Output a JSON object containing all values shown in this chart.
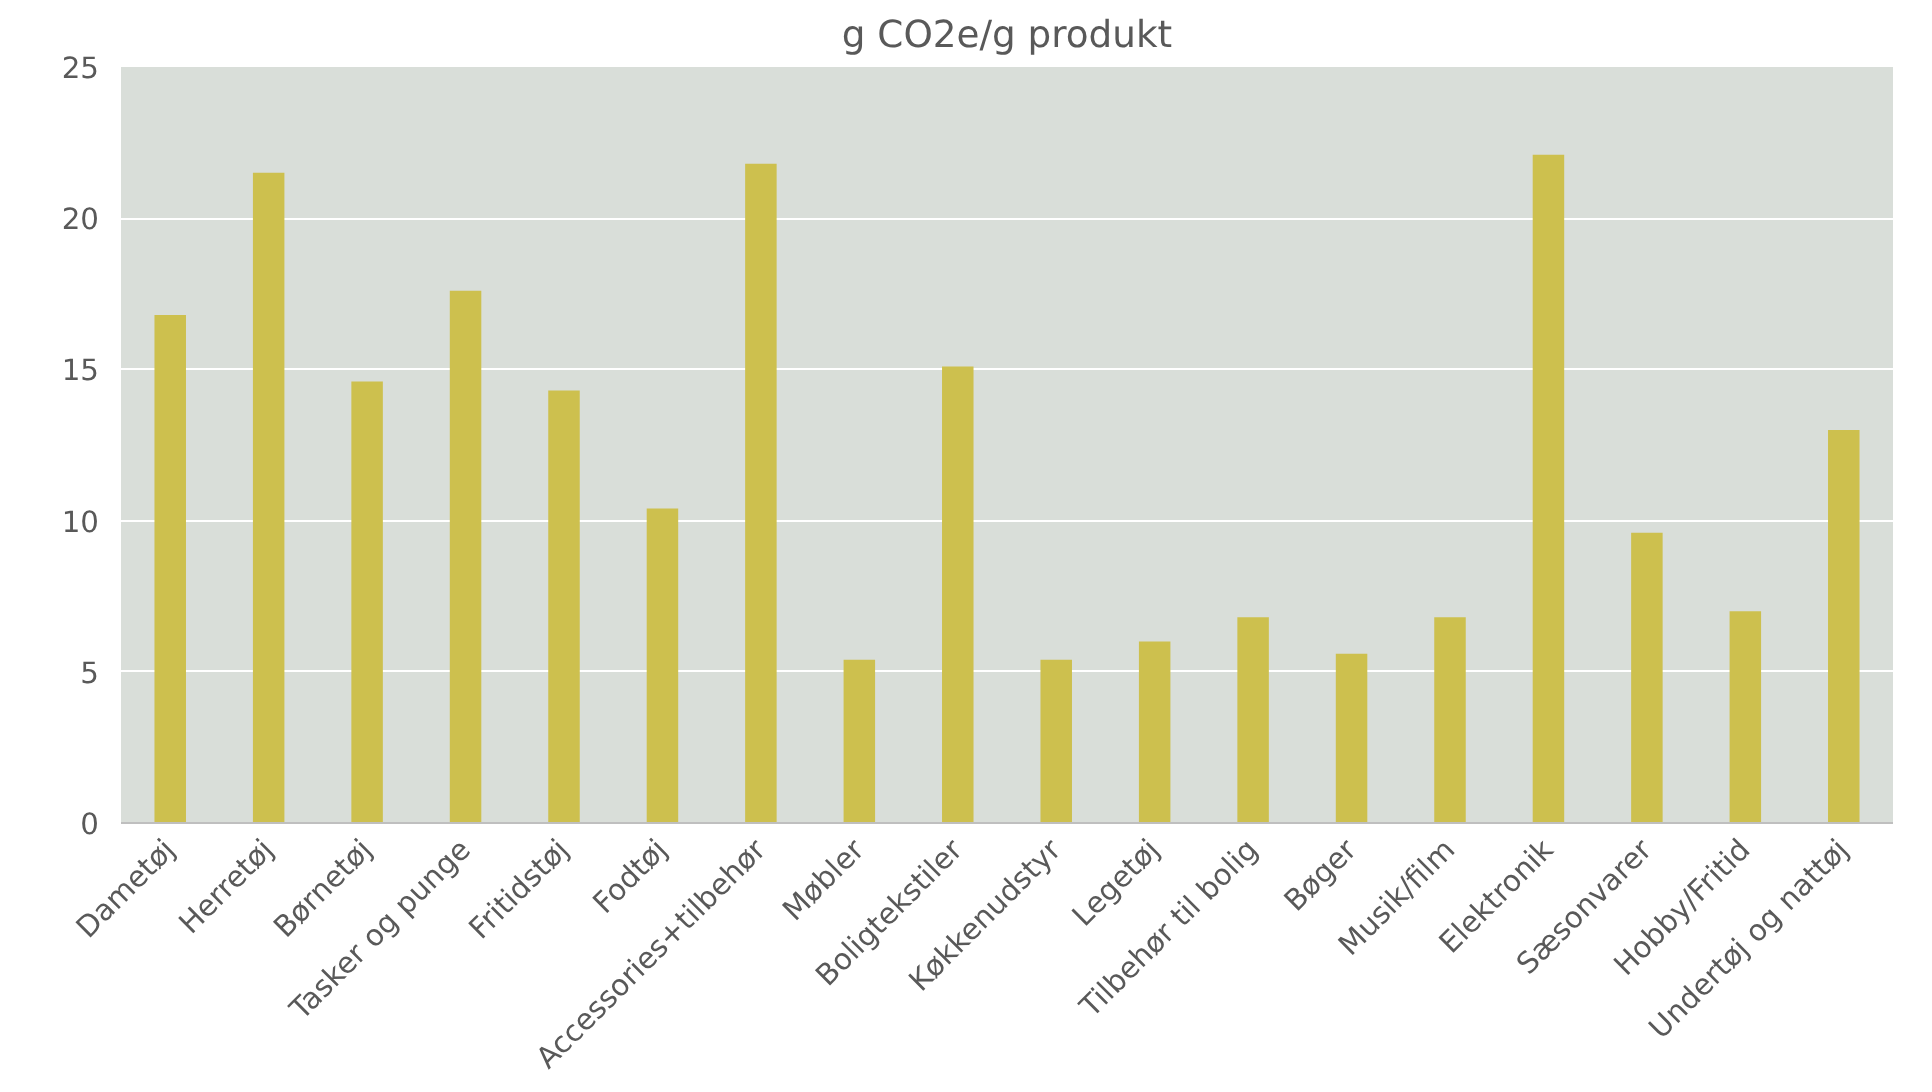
{
  "chart_data": {
    "type": "bar",
    "title": "g CO2e/g produkt",
    "categories": [
      "Dametøj",
      "Herretøj",
      "Børnetøj",
      "Tasker og punge",
      "Fritidstøj",
      "Fodtøj",
      "Accessories+tilbehør",
      "Møbler",
      "Boligtekstiler",
      "Køkkenudstyr",
      "Legetøj",
      "Tilbehør til bolig",
      "Bøger",
      "Musik/film",
      "Elektronik",
      "Sæsonvarer",
      "Hobby/Fritid",
      "Undertøj og nattøj"
    ],
    "values": [
      16.8,
      21.5,
      14.6,
      17.6,
      14.3,
      10.4,
      21.8,
      5.4,
      15.1,
      5.4,
      6.0,
      6.8,
      5.6,
      6.8,
      22.1,
      9.6,
      7.0,
      13.0
    ],
    "color": "#cdc04e",
    "ylim": [
      0,
      25
    ],
    "yticks": [
      0,
      5,
      10,
      15,
      20,
      25
    ],
    "grid": "y"
  }
}
